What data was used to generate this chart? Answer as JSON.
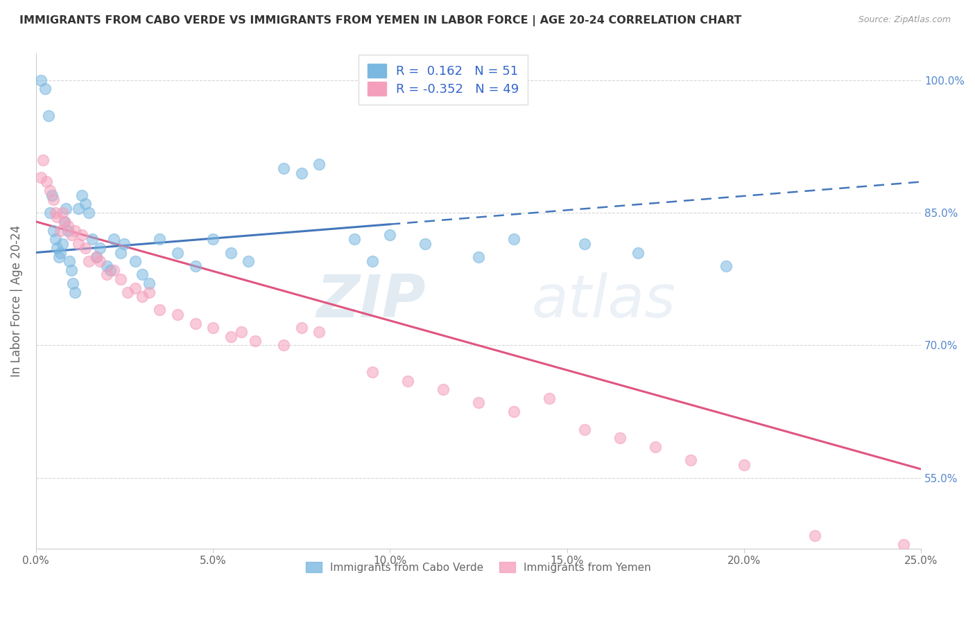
{
  "title": "IMMIGRANTS FROM CABO VERDE VS IMMIGRANTS FROM YEMEN IN LABOR FORCE | AGE 20-24 CORRELATION CHART",
  "source": "Source: ZipAtlas.com",
  "ylabel": "In Labor Force | Age 20-24",
  "xlim": [
    0.0,
    25.0
  ],
  "ylim": [
    47.0,
    103.0
  ],
  "xticks": [
    0.0,
    5.0,
    10.0,
    15.0,
    20.0,
    25.0
  ],
  "ytick_values": [
    55.0,
    70.0,
    85.0,
    100.0
  ],
  "cabo_verde_R": 0.162,
  "cabo_verde_N": 51,
  "yemen_R": -0.352,
  "yemen_N": 49,
  "cabo_verde_color": "#7bb8e0",
  "yemen_color": "#f4a0bc",
  "cabo_verde_line_color": "#4477bb",
  "yemen_line_color": "#e05580",
  "watermark_zip": "ZIP",
  "watermark_atlas": "atlas",
  "cabo_verde_x": [
    0.15,
    0.25,
    0.35,
    0.4,
    0.45,
    0.5,
    0.55,
    0.6,
    0.65,
    0.7,
    0.75,
    0.8,
    0.85,
    0.9,
    0.95,
    1.0,
    1.05,
    1.1,
    1.2,
    1.3,
    1.4,
    1.5,
    1.6,
    1.7,
    1.8,
    2.0,
    2.1,
    2.2,
    2.4,
    2.5,
    2.8,
    3.0,
    3.2,
    3.5,
    4.0,
    4.5,
    5.0,
    5.5,
    6.0,
    7.0,
    7.5,
    8.0,
    9.0,
    9.5,
    10.0,
    11.0,
    12.5,
    13.5,
    15.5,
    17.0,
    19.5
  ],
  "cabo_verde_y": [
    100.0,
    99.0,
    96.0,
    85.0,
    87.0,
    83.0,
    82.0,
    81.0,
    80.0,
    80.5,
    81.5,
    84.0,
    85.5,
    83.0,
    79.5,
    78.5,
    77.0,
    76.0,
    85.5,
    87.0,
    86.0,
    85.0,
    82.0,
    80.0,
    81.0,
    79.0,
    78.5,
    82.0,
    80.5,
    81.5,
    79.5,
    78.0,
    77.0,
    82.0,
    80.5,
    79.0,
    82.0,
    80.5,
    79.5,
    90.0,
    89.5,
    90.5,
    82.0,
    79.5,
    82.5,
    81.5,
    80.0,
    82.0,
    81.5,
    80.5,
    79.0
  ],
  "yemen_x": [
    0.15,
    0.2,
    0.3,
    0.4,
    0.5,
    0.55,
    0.6,
    0.7,
    0.75,
    0.8,
    0.9,
    1.0,
    1.1,
    1.2,
    1.3,
    1.4,
    1.5,
    1.7,
    1.8,
    2.0,
    2.2,
    2.4,
    2.6,
    2.8,
    3.0,
    3.2,
    3.5,
    4.0,
    4.5,
    5.0,
    5.5,
    5.8,
    6.2,
    7.0,
    7.5,
    8.0,
    9.5,
    10.5,
    11.5,
    12.5,
    13.5,
    14.5,
    15.5,
    16.5,
    17.5,
    18.5,
    20.0,
    22.0,
    24.5
  ],
  "yemen_y": [
    89.0,
    91.0,
    88.5,
    87.5,
    86.5,
    85.0,
    84.5,
    83.0,
    85.0,
    84.0,
    83.5,
    82.5,
    83.0,
    81.5,
    82.5,
    81.0,
    79.5,
    80.0,
    79.5,
    78.0,
    78.5,
    77.5,
    76.0,
    76.5,
    75.5,
    76.0,
    74.0,
    73.5,
    72.5,
    72.0,
    71.0,
    71.5,
    70.5,
    70.0,
    72.0,
    71.5,
    67.0,
    66.0,
    65.0,
    63.5,
    62.5,
    64.0,
    60.5,
    59.5,
    58.5,
    57.0,
    56.5,
    48.5,
    47.5
  ],
  "cabo_verde_line_x0": 0.0,
  "cabo_verde_line_y0": 80.5,
  "cabo_verde_line_x1": 25.0,
  "cabo_verde_line_y1": 88.5,
  "cabo_verde_solid_end": 10.0,
  "yemen_line_x0": 0.0,
  "yemen_line_y0": 84.0,
  "yemen_line_x1": 25.0,
  "yemen_line_y1": 56.0
}
